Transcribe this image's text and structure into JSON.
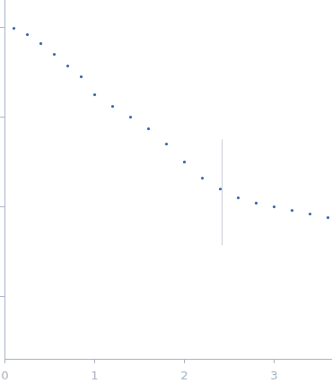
{
  "chart_data": {
    "type": "scatter",
    "x": [
      0.1,
      0.25,
      0.4,
      0.55,
      0.7,
      0.85,
      1.0,
      1.2,
      1.4,
      1.6,
      1.8,
      2.0,
      2.2,
      2.4,
      2.6,
      2.8,
      3.0,
      3.2,
      3.4,
      3.6
    ],
    "values": [
      0.977,
      0.832,
      0.661,
      0.501,
      0.372,
      0.282,
      0.178,
      0.132,
      0.1,
      0.0741,
      0.0501,
      0.0316,
      0.0209,
      0.0158,
      0.0126,
      0.011,
      0.01,
      0.00912,
      0.00832,
      0.00759
    ],
    "color": "#3a66b0",
    "marker": "circle",
    "xlim": [
      0,
      3.65
    ],
    "xticks": [
      0,
      1,
      2,
      3
    ],
    "ylim": [
      0.0002,
      2
    ],
    "yticks": [
      0.001,
      0.01,
      0.1,
      1
    ],
    "log": "y",
    "tick_labels": "x",
    "rule": {
      "x": 2.42,
      "y": [
        0.0037,
        0.056
      ]
    }
  }
}
